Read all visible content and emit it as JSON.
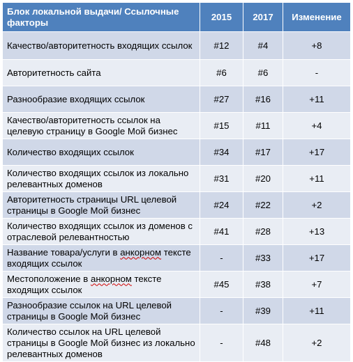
{
  "headers": {
    "factor": "Блок локальной выдачи/ Ссылочные факторы",
    "y2015": "2015",
    "y2017": "2017",
    "change": "Изменение"
  },
  "rows": [
    {
      "factor": "Качество/авторитетность входящих ссылок",
      "y2015": "#12",
      "y2017": "#4",
      "change": "+8"
    },
    {
      "factor": "Авторитетность сайта",
      "y2015": "#6",
      "y2017": "#6",
      "change": "-"
    },
    {
      "factor": "Разнообразие входящих ссылок",
      "y2015": "#27",
      "y2017": "#16",
      "change": "+11"
    },
    {
      "factor": "Качество/авторитетность ссылок на целевую страницу в Google Мой бизнес",
      "y2015": "#15",
      "y2017": "#11",
      "change": "+4"
    },
    {
      "factor": "Количество входящих ссылок",
      "y2015": "#34",
      "y2017": "#17",
      "change": "+17"
    },
    {
      "factor": "Количество входящих ссылок из локально релевантных доменов",
      "y2015": "#31",
      "y2017": "#20",
      "change": "+11"
    },
    {
      "factor": "Авторитетность страницы URL целевой страницы в Google Мой бизнес",
      "y2015": "#24",
      "y2017": "#22",
      "change": "+2"
    },
    {
      "factor": "Количество входящих ссылок из доменов с отраслевой релевантностью",
      "y2015": "#41",
      "y2017": "#28",
      "change": "+13"
    },
    {
      "factor_before": "Название товара/услуги в ",
      "factor_wavy": "анкорном",
      "factor_after": " тексте входящих ссылок",
      "y2015": "-",
      "y2017": "#33",
      "change": "+17"
    },
    {
      "factor_before": "Местоположение в ",
      "factor_wavy": "анкорном",
      "factor_after": " тексте входящих ссылок",
      "y2015": "#45",
      "y2017": "#38",
      "change": "+7"
    },
    {
      "factor": "Разнообразие ссылок на URL целевой страницы в Google Мой бизнес",
      "y2015": "-",
      "y2017": "#39",
      "change": "+11"
    },
    {
      "factor": "Количество ссылок на URL целевой страницы в Google Мой бизнес из локально релевантных доменов",
      "y2015": "-",
      "y2017": "#48",
      "change": "+2"
    }
  ]
}
